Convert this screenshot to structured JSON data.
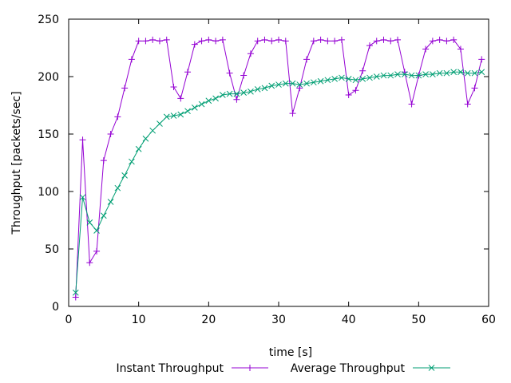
{
  "chart_data": {
    "type": "line",
    "xlabel": "time [s]",
    "ylabel": "Throughput [packets/sec]",
    "xlim": [
      0,
      60
    ],
    "ylim": [
      0,
      250
    ],
    "xticks": [
      0,
      10,
      20,
      30,
      40,
      50,
      60
    ],
    "yticks": [
      0,
      50,
      100,
      150,
      200,
      250
    ],
    "grid": false,
    "legend": "bottom",
    "series": [
      {
        "name": "Instant Throughput",
        "color": "#9400d3",
        "marker": "plus",
        "x": [
          1,
          2,
          3,
          4,
          5,
          6,
          7,
          8,
          9,
          10,
          11,
          12,
          13,
          14,
          15,
          16,
          17,
          18,
          19,
          20,
          21,
          22,
          23,
          24,
          25,
          26,
          27,
          28,
          29,
          30,
          31,
          32,
          33,
          34,
          35,
          36,
          37,
          38,
          39,
          40,
          41,
          42,
          43,
          44,
          45,
          46,
          47,
          48,
          49,
          50,
          51,
          52,
          53,
          54,
          55,
          56,
          57,
          58,
          59
        ],
        "y": [
          8,
          145,
          38,
          48,
          127,
          150,
          165,
          190,
          215,
          231,
          231,
          232,
          231,
          232,
          191,
          181,
          204,
          228,
          231,
          232,
          231,
          232,
          203,
          180,
          201,
          220,
          231,
          232,
          231,
          232,
          231,
          168,
          190,
          215,
          231,
          232,
          231,
          231,
          232,
          184,
          188,
          205,
          227,
          231,
          232,
          231,
          232,
          204,
          176,
          201,
          224,
          231,
          232,
          231,
          232,
          224,
          176,
          190,
          215
        ]
      },
      {
        "name": "Average Throughput",
        "color": "#009e73",
        "marker": "cross",
        "x": [
          1,
          2,
          3,
          4,
          5,
          6,
          7,
          8,
          9,
          10,
          11,
          12,
          13,
          14,
          15,
          16,
          17,
          18,
          19,
          20,
          21,
          22,
          23,
          24,
          25,
          26,
          27,
          28,
          29,
          30,
          31,
          32,
          33,
          34,
          35,
          36,
          37,
          38,
          39,
          40,
          41,
          42,
          43,
          44,
          45,
          46,
          47,
          48,
          49,
          50,
          51,
          52,
          53,
          54,
          55,
          56,
          57,
          58,
          59
        ],
        "y": [
          12,
          95,
          73,
          66,
          79,
          91,
          103,
          114,
          126,
          137,
          146,
          153,
          159,
          165,
          166,
          167,
          170,
          173,
          176,
          179,
          181,
          184,
          185,
          185,
          186,
          187,
          189,
          190,
          192,
          193,
          194,
          194,
          193,
          194,
          195,
          196,
          197,
          198,
          199,
          198,
          197,
          198,
          199,
          200,
          201,
          201,
          202,
          202,
          201,
          201,
          202,
          202,
          203,
          203,
          204,
          204,
          203,
          203,
          204
        ]
      }
    ]
  }
}
